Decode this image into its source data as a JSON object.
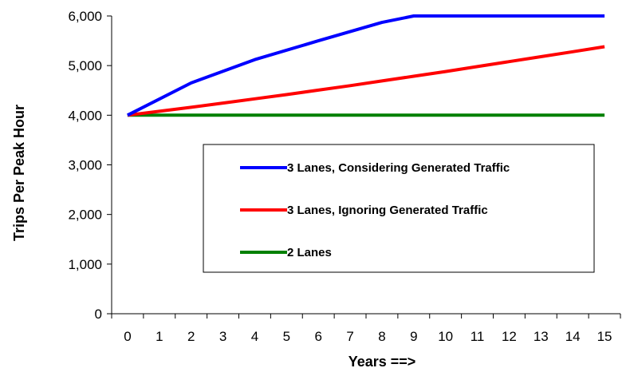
{
  "chart_data": {
    "type": "line",
    "title": "",
    "xlabel": "Years ==>",
    "ylabel": "Trips Per Peak Hour",
    "x": [
      0,
      1,
      2,
      3,
      4,
      5,
      6,
      7,
      8,
      9,
      10,
      11,
      12,
      13,
      14,
      15
    ],
    "x_tick_labels": [
      "0",
      "1",
      "2",
      "3",
      "4",
      "5",
      "6",
      "7",
      "8",
      "9",
      "10",
      "11",
      "12",
      "13",
      "14",
      "15"
    ],
    "y_ticks": [
      0,
      1000,
      2000,
      3000,
      4000,
      5000,
      6000
    ],
    "y_tick_labels": [
      "0",
      "1,000",
      "2,000",
      "3,000",
      "4,000",
      "5,000",
      "6,000"
    ],
    "ylim": [
      0,
      6000
    ],
    "xlim": [
      0,
      15
    ],
    "grid": false,
    "legend_position": "center-right",
    "series": [
      {
        "name": "3 Lanes, Considering Generated Traffic",
        "color": "#0000FF",
        "x": [
          0,
          2,
          4,
          6,
          8,
          9,
          10,
          12,
          14,
          15
        ],
        "values": [
          4000,
          4650,
          5120,
          5500,
          5870,
          6000,
          6000,
          6000,
          6000,
          6000
        ]
      },
      {
        "name": "3 Lanes, Ignoring Generated Traffic",
        "color": "#FF0000",
        "x": [
          0,
          1,
          2,
          3,
          4,
          5,
          6,
          7,
          8,
          9,
          10,
          11,
          12,
          13,
          14,
          15
        ],
        "values": [
          4000,
          4080,
          4160,
          4245,
          4330,
          4415,
          4505,
          4595,
          4690,
          4785,
          4880,
          4980,
          5080,
          5180,
          5280,
          5380
        ]
      },
      {
        "name": "2 Lanes",
        "color": "#008000",
        "x": [
          0,
          15
        ],
        "values": [
          4000,
          4000
        ]
      }
    ]
  }
}
